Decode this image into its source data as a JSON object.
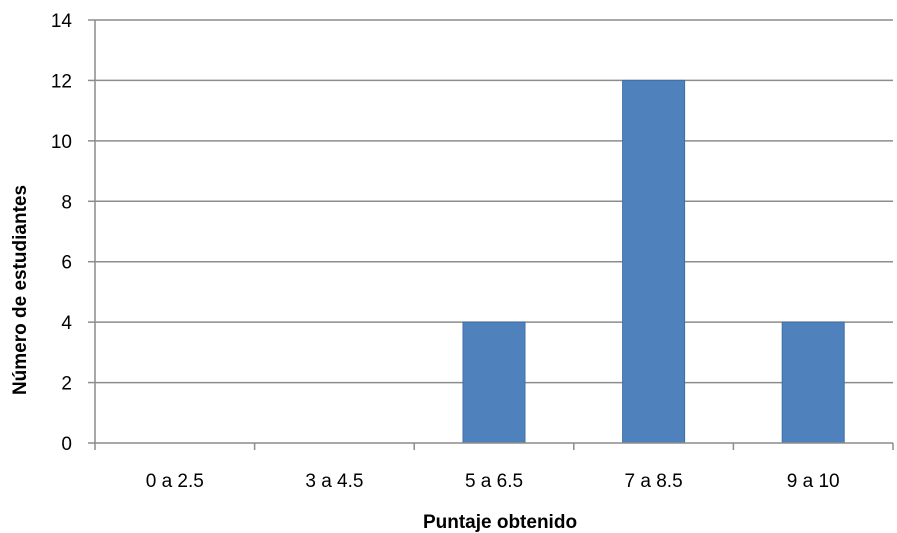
{
  "chart_data": {
    "type": "bar",
    "title": "",
    "xlabel": "Puntaje obtenido",
    "ylabel": "Número de estudiantes",
    "categories": [
      "0 a 2.5",
      "3 a 4.5",
      "5 a 6.5",
      "7 a 8.5",
      "9 a 10"
    ],
    "values": [
      0,
      0,
      4,
      12,
      4
    ],
    "ylim": [
      0,
      14
    ],
    "yticks": [
      0,
      2,
      4,
      6,
      8,
      10,
      12,
      14
    ],
    "grid": true,
    "legend": "none",
    "colors": {
      "bar": "#4f81bd",
      "bar_edge": "#3f6fa6",
      "grid": "#8c8c8c",
      "text": "#000000"
    }
  }
}
